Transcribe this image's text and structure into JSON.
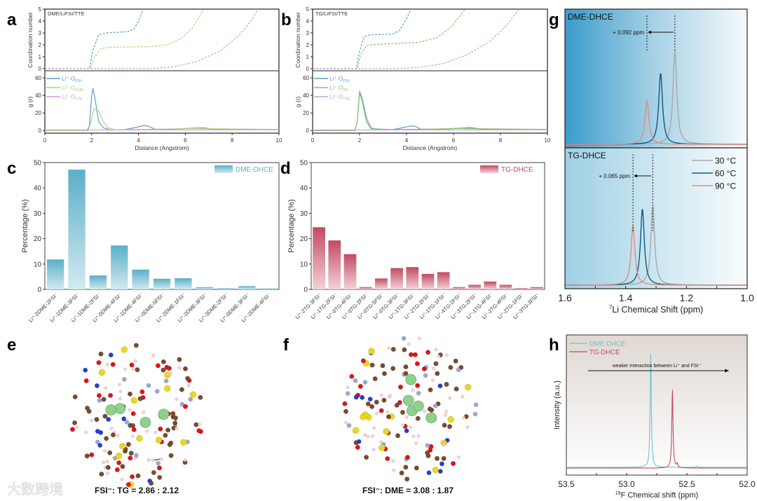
{
  "panel_labels": {
    "a": "a",
    "b": "b",
    "c": "c",
    "d": "d",
    "e": "e",
    "f": "f",
    "g": "g",
    "h": "h"
  },
  "chart_data": [
    {
      "id": "a",
      "type": "line",
      "title": "DME/LiFSI/TTE",
      "xlabel": "Distance (Angstrom)",
      "xlim": [
        0,
        10
      ],
      "xticks": [
        0,
        2,
        4,
        6,
        8,
        10
      ],
      "top": {
        "ylabel": "Coordination number",
        "ylim": [
          0,
          5
        ],
        "yticks": [
          0,
          1,
          2,
          3,
          4,
          5
        ],
        "style": "dashed"
      },
      "bottom": {
        "ylabel": "g (r)",
        "ylim": [
          -3,
          68
        ],
        "yticks": [
          0,
          20,
          40,
          60
        ]
      },
      "series": [
        {
          "name_main": "Li⁺-O",
          "name_sub": "FSI⁻",
          "color": "#5b9fd0",
          "cn": [
            [
              0,
              0
            ],
            [
              1.9,
              0
            ],
            [
              2.05,
              1.5
            ],
            [
              2.3,
              2.85
            ],
            [
              2.6,
              3.0
            ],
            [
              3.5,
              3.1
            ],
            [
              3.8,
              3.3
            ],
            [
              4.0,
              4.0
            ],
            [
              4.2,
              5
            ]
          ],
          "gr": [
            [
              0,
              0
            ],
            [
              1.8,
              0
            ],
            [
              1.9,
              5
            ],
            [
              2.0,
              40
            ],
            [
              2.05,
              48
            ],
            [
              2.15,
              35
            ],
            [
              2.3,
              10
            ],
            [
              2.5,
              3
            ],
            [
              2.8,
              0.5
            ],
            [
              3.4,
              1
            ],
            [
              3.8,
              3
            ],
            [
              4.2,
              5.5
            ],
            [
              4.4,
              5
            ],
            [
              4.7,
              1.5
            ],
            [
              5.5,
              1.5
            ],
            [
              6.5,
              3
            ],
            [
              6.8,
              3
            ],
            [
              7.2,
              1.5
            ],
            [
              10,
              1
            ]
          ]
        },
        {
          "name_main": "Li⁺-O",
          "name_sub": "DME",
          "color": "#b5d07a",
          "cn": [
            [
              0,
              0
            ],
            [
              1.95,
              0
            ],
            [
              2.1,
              0.9
            ],
            [
              2.4,
              1.7
            ],
            [
              2.8,
              1.8
            ],
            [
              4.5,
              1.85
            ],
            [
              5.2,
              2.0
            ],
            [
              5.8,
              2.5
            ],
            [
              6.3,
              3.4
            ],
            [
              6.8,
              5
            ]
          ],
          "gr": [
            [
              0,
              0
            ],
            [
              1.85,
              0
            ],
            [
              1.95,
              8
            ],
            [
              2.1,
              25
            ],
            [
              2.3,
              22
            ],
            [
              2.5,
              10
            ],
            [
              2.7,
              3
            ],
            [
              3.0,
              0.8
            ],
            [
              5,
              1.5
            ],
            [
              6.5,
              2.5
            ],
            [
              7,
              2
            ],
            [
              10,
              1.3
            ]
          ]
        },
        {
          "name_main": "Li⁺-O",
          "name_sub": "TTE",
          "color": "#c9a2d4",
          "cn": [
            [
              0,
              0
            ],
            [
              4.5,
              0
            ],
            [
              5.5,
              0.15
            ],
            [
              6.5,
              0.6
            ],
            [
              7.5,
              1.5
            ],
            [
              8.3,
              2.8
            ],
            [
              8.8,
              4
            ],
            [
              9.1,
              5
            ]
          ],
          "gr": [
            [
              0,
              0.6
            ],
            [
              10,
              0.8
            ]
          ]
        }
      ]
    },
    {
      "id": "b",
      "type": "line",
      "title": "TG/LiFSI/TTE",
      "xlabel": "Distance (Angstrom)",
      "xlim": [
        0,
        10
      ],
      "xticks": [
        0,
        2,
        4,
        6,
        8,
        10
      ],
      "top": {
        "ylabel": "Coordination number",
        "ylim": [
          0,
          5
        ],
        "yticks": [
          0,
          1,
          2,
          3,
          4,
          5
        ],
        "style": "dashed"
      },
      "bottom": {
        "ylabel": "g (r)",
        "ylim": [
          -3,
          68
        ],
        "yticks": [
          0,
          20,
          40,
          60
        ]
      },
      "series": [
        {
          "name_main": "Li⁺-O",
          "name_sub": "FSI⁻",
          "color": "#5b9fd0",
          "cn": [
            [
              0,
              0
            ],
            [
              1.85,
              0
            ],
            [
              2.0,
              1.5
            ],
            [
              2.2,
              2.7
            ],
            [
              2.5,
              2.85
            ],
            [
              3.4,
              2.9
            ],
            [
              3.7,
              3.2
            ],
            [
              4.0,
              4.2
            ],
            [
              4.2,
              5
            ]
          ],
          "gr": [
            [
              0,
              0
            ],
            [
              1.8,
              0
            ],
            [
              1.9,
              10
            ],
            [
              2.0,
              43
            ],
            [
              2.1,
              35
            ],
            [
              2.3,
              10
            ],
            [
              2.5,
              2
            ],
            [
              3.4,
              1
            ],
            [
              3.8,
              3
            ],
            [
              4.2,
              5.3
            ],
            [
              4.4,
              4.5
            ],
            [
              4.6,
              1.5
            ],
            [
              5.5,
              1.5
            ],
            [
              6.5,
              3
            ],
            [
              6.7,
              3.5
            ],
            [
              7.2,
              1.5
            ],
            [
              10,
              1.2
            ]
          ]
        },
        {
          "name_main": "Li⁺-O",
          "name_sub": "TG",
          "color": "#8fbf6a",
          "cn": [
            [
              0,
              0
            ],
            [
              1.9,
              0
            ],
            [
              2.05,
              1.2
            ],
            [
              2.3,
              1.95
            ],
            [
              2.8,
              2.05
            ],
            [
              4.5,
              2.2
            ],
            [
              5.3,
              2.6
            ],
            [
              5.9,
              3.5
            ],
            [
              6.5,
              5
            ]
          ],
          "gr": [
            [
              0,
              0
            ],
            [
              1.8,
              0
            ],
            [
              1.9,
              10
            ],
            [
              2.0,
              45
            ],
            [
              2.1,
              38
            ],
            [
              2.3,
              14
            ],
            [
              2.5,
              3
            ],
            [
              2.8,
              1
            ],
            [
              5,
              1.5
            ],
            [
              6.3,
              2.5
            ],
            [
              7,
              2
            ],
            [
              10,
              1.3
            ]
          ]
        },
        {
          "name_main": "Li⁺-O",
          "name_sub": "TTE",
          "color": "#c9a2d4",
          "cn": [
            [
              0,
              0
            ],
            [
              3.5,
              0
            ],
            [
              4.5,
              0.1
            ],
            [
              5.5,
              0.4
            ],
            [
              6.5,
              1.1
            ],
            [
              7.5,
              2.2
            ],
            [
              8.2,
              3.5
            ],
            [
              8.8,
              5
            ]
          ],
          "gr": [
            [
              0,
              0.6
            ],
            [
              10,
              0.8
            ]
          ]
        }
      ]
    },
    {
      "id": "c",
      "type": "bar",
      "ylabel": "Percentage (%)",
      "ylim": [
        0,
        50
      ],
      "yticks": [
        0,
        10,
        20,
        30,
        40,
        50
      ],
      "legend": "DME-DHCE",
      "legend_position": "top-right",
      "color_top": "#5aafc8",
      "color_bottom": "#d3eaf1",
      "categories": [
        "Li⁺-2DME-2FSI⁻",
        "Li⁺-1DME-3FSI⁻",
        "Li⁺-1DME-2FSI⁻",
        "Li⁺-0DME-4FSI⁻",
        "Li⁺-1DME-4FSI⁻",
        "Li⁺-0DME-5FSI⁻",
        "Li⁺-2DME-1FSI⁻",
        "Li⁺-2DME-3FSI⁻",
        "Li⁺-3DME-2FSI⁻",
        "Li⁺-0DME-3FSI⁻",
        "Li⁺-2DME-4FSI⁻"
      ],
      "values": [
        11.8,
        47.2,
        5.5,
        17.3,
        7.8,
        4.2,
        4.4,
        0.9,
        0.5,
        1.3,
        0.4
      ]
    },
    {
      "id": "d",
      "type": "bar",
      "ylabel": "Percentage (%)",
      "ylim": [
        0,
        50
      ],
      "yticks": [
        0,
        10,
        20,
        30,
        40,
        50
      ],
      "legend": "TG-DHCE",
      "legend_position": "top-right",
      "color_top": "#c24a60",
      "color_bottom": "#f3d3d9",
      "categories": [
        "Li⁺-2TG-3FSI⁻",
        "Li⁺-1TG-2FSI⁻",
        "Li⁺-0TG-4FSI⁻",
        "Li⁺-0TG-2FSI⁻",
        "Li⁺-0TG-5FSI⁻",
        "Li⁺-0TG-3FSI⁻",
        "Li⁺-1TG-3FSI⁻",
        "Li⁺-2TG-2FSI⁻",
        "Li⁺-1TG-1FSI⁻",
        "Li⁺-4TG-2FSI⁻",
        "Li⁺-3TG-2FSI⁻",
        "Li⁺-1TG-4FSI⁻",
        "Li⁺-2TG-4FSI⁻",
        "Li⁺-2TG-1FSI⁻",
        "Li⁺-3TG-3FSI⁻"
      ],
      "values": [
        24.5,
        19.3,
        13.9,
        0.9,
        4.3,
        8.4,
        8.8,
        6.1,
        6.8,
        0.9,
        1.8,
        3.1,
        1.8,
        0.5,
        0.9
      ]
    },
    {
      "id": "g",
      "type": "line",
      "xlabel_sup": "7",
      "xlabel": "Li Chemical Shift (ppm)",
      "xlim": [
        1.6,
        1.0
      ],
      "xticks": [
        1.6,
        1.4,
        1.2,
        1.0
      ],
      "legend_position": "top-right",
      "panels": [
        {
          "name": "DME-DHCE",
          "shift_label": "+ 0.092 ppm",
          "dashed_at": [
            1.238,
            1.33
          ],
          "peaks": [
            {
              "label": "30 °C",
              "color": "#a8a8a8",
              "center": 1.238,
              "intensity": 0.72
            },
            {
              "label": "60 °C",
              "color": "#0d5a80",
              "center": 1.285,
              "intensity": 0.55
            },
            {
              "label": "90 °C",
              "color": "#e58a80",
              "center": 1.33,
              "intensity": 0.34
            }
          ]
        },
        {
          "name": "TG-DHCE",
          "shift_label": "+ 0.065 ppm",
          "dashed_at": [
            1.311,
            1.376
          ],
          "peaks": [
            {
              "label": "30 °C",
              "color": "#a8a8a8",
              "center": 1.311,
              "intensity": 0.6
            },
            {
              "label": "60 °C",
              "color": "#0d5a80",
              "center": 1.345,
              "intensity": 0.58
            },
            {
              "label": "90 °C",
              "color": "#e58a80",
              "center": 1.376,
              "intensity": 0.45
            }
          ]
        }
      ],
      "legend": [
        "30 °C",
        "60 °C",
        "90 °C"
      ]
    },
    {
      "id": "h",
      "type": "line",
      "xlabel_sup": "19",
      "xlabel": "F Chemical shift (ppm)",
      "ylabel": "Intensity (a.u.)",
      "xlim": [
        53.5,
        52.0
      ],
      "xticks": [
        53.5,
        53.0,
        52.5,
        52.0
      ],
      "annotation": "weaker interaction between Li⁺ and FSI⁻",
      "legend_position": "top-left",
      "series": [
        {
          "name": "DME-DHCE",
          "color": "#6cc3cf",
          "peaks": [
            {
              "center": 52.8,
              "intensity": 0.9
            },
            {
              "center": 52.42,
              "intensity": 0.01
            }
          ]
        },
        {
          "name": "TG-DHCE",
          "color": "#c2485e",
          "peaks": [
            {
              "center": 52.62,
              "intensity": 0.62
            },
            {
              "center": 52.58,
              "intensity": 0.03
            }
          ]
        }
      ]
    }
  ],
  "structures": {
    "e_caption": "FSI⁻: TG = 2.86 : 2.12",
    "f_caption": "FSI⁻: DME = 3.08 : 1.87"
  },
  "watermark": "大数跨境"
}
